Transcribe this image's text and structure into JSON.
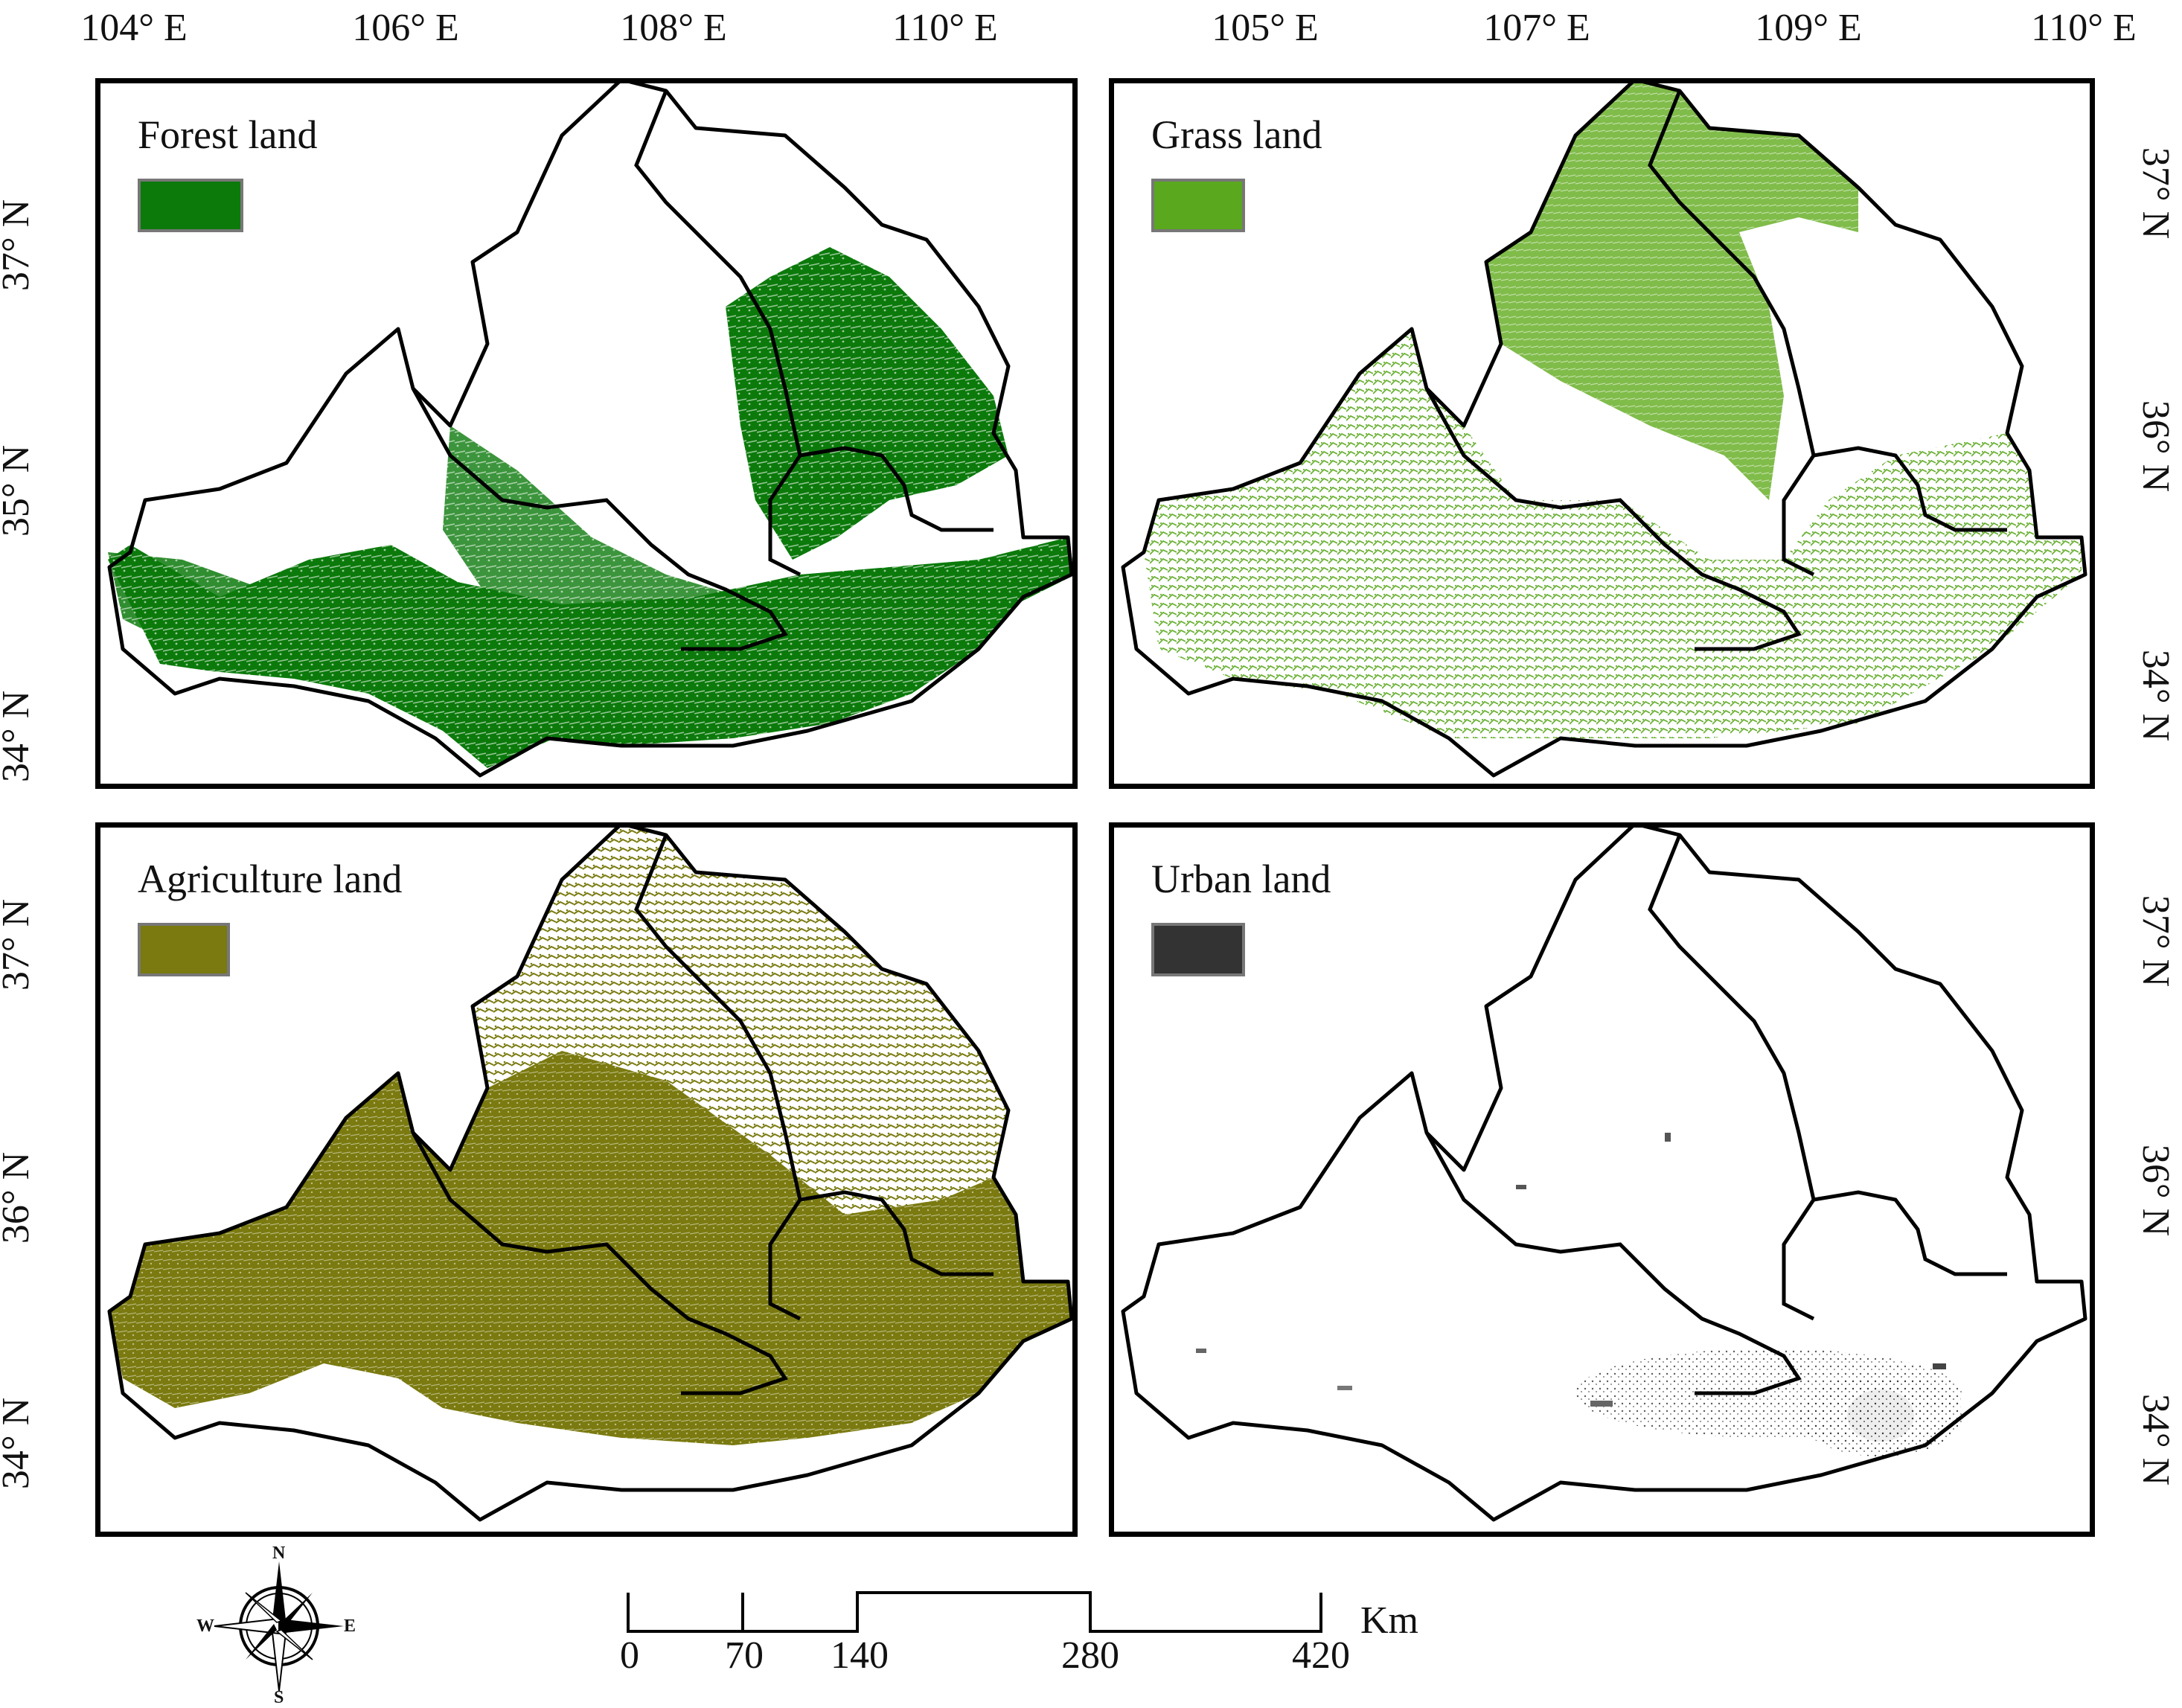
{
  "top_longitude_labels_left": [
    "104° E",
    "106° E",
    "108° E",
    "110° E"
  ],
  "top_longitude_labels_right": [
    "105° E",
    "107° E",
    "109° E",
    "110° E"
  ],
  "left_latitude_labels_top": [
    "37° N",
    "35° N",
    "34° N"
  ],
  "left_latitude_labels_bottom": [
    "37° N",
    "36° N",
    "34° N"
  ],
  "right_latitude_labels_top": [
    "37° N",
    "36° N",
    "34° N"
  ],
  "right_latitude_labels_bottom": [
    "37° N",
    "36° N",
    "34° N"
  ],
  "panels": [
    {
      "title": "Forest land",
      "color": "#0b7a0b",
      "icon": "forest-swatch"
    },
    {
      "title": "Grass land",
      "color": "#5aa81e",
      "icon": "grass-swatch"
    },
    {
      "title": "Agriculture land",
      "color": "#7a7a10",
      "icon": "agriculture-swatch"
    },
    {
      "title": "Urban land",
      "color": "#333333",
      "icon": "urban-swatch"
    }
  ],
  "compass": {
    "n": "N",
    "s": "S",
    "e": "E",
    "w": "W",
    "icon": "compass-rose-icon"
  },
  "scale_bar": {
    "unit": "Km",
    "ticks": [
      "0",
      "70",
      "140",
      "280",
      "420"
    ]
  }
}
